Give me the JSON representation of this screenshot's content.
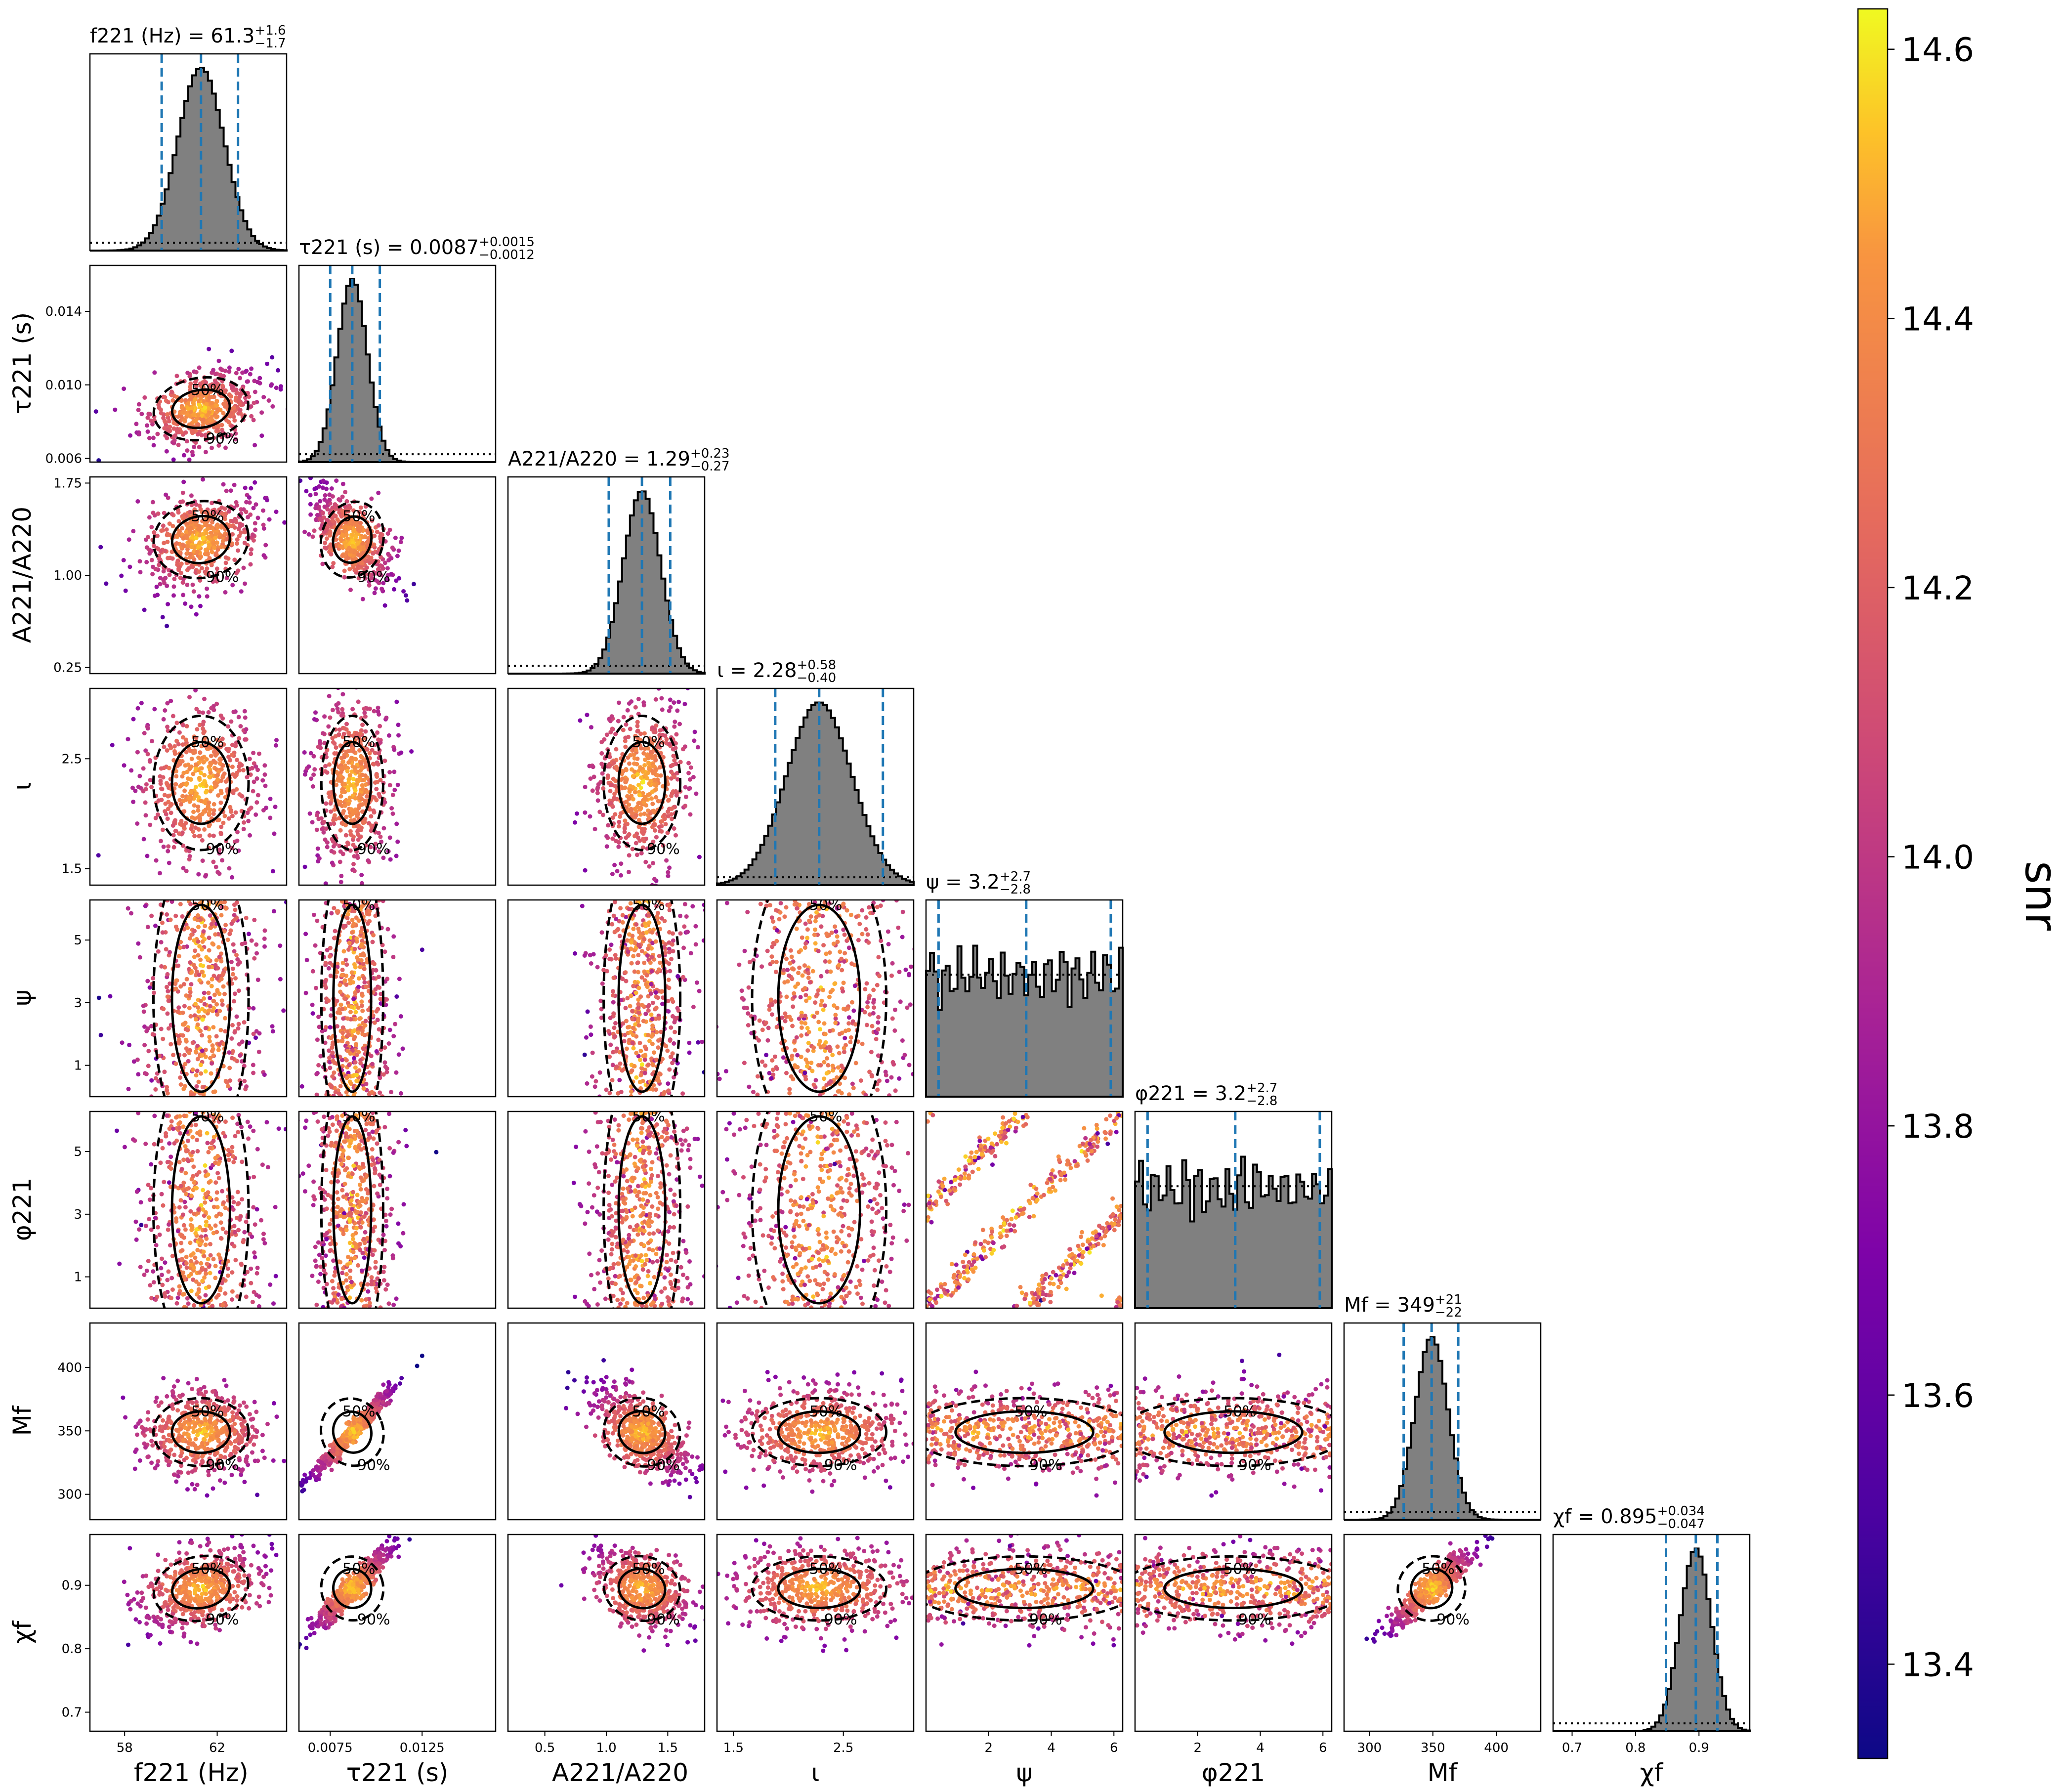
{
  "chart_data": {
    "type": "scatter",
    "title": "",
    "kind": "corner plot",
    "parameters": [
      {
        "key": "f221",
        "axis_label": "f221 (Hz)",
        "title_name": "f221 (Hz)",
        "median": "61.3",
        "plus": "+1.6",
        "minus": "−1.7",
        "range": [
          56.5,
          65.0
        ],
        "ticks": [
          58,
          62
        ],
        "tick_labels": [
          "58",
          "62"
        ]
      },
      {
        "key": "tau221",
        "axis_label": "τ221 (s)",
        "title_name": "τ221 (s)",
        "median": "0.0087",
        "plus": "+0.0015",
        "minus": "−0.0012",
        "range": [
          0.0058,
          0.0165
        ],
        "ticks": [
          0.0075,
          0.0125
        ],
        "tick_labels": [
          "0.0075",
          "0.0125"
        ],
        "y_ticks": [
          0.006,
          0.01,
          0.014
        ],
        "y_tick_labels": [
          "0.006",
          "0.010",
          "0.014"
        ]
      },
      {
        "key": "amp",
        "axis_label": "A221/A220",
        "title_name": "A221/A220",
        "median": "1.29",
        "plus": "+0.23",
        "minus": "−0.27",
        "range": [
          0.2,
          1.8
        ],
        "ticks": [
          0.5,
          1.0,
          1.5
        ],
        "tick_labels": [
          "0.5",
          "1.0",
          "1.5"
        ],
        "y_ticks": [
          0.25,
          1.0,
          1.75
        ],
        "y_tick_labels": [
          "0.25",
          "1.00",
          "1.75"
        ]
      },
      {
        "key": "iota",
        "axis_label": "ι",
        "title_name": "ι",
        "median": "2.28",
        "plus": "+0.58",
        "minus": "−0.40",
        "range": [
          1.35,
          3.14
        ],
        "ticks": [
          1.5,
          2.5
        ],
        "tick_labels": [
          "1.5",
          "2.5"
        ]
      },
      {
        "key": "psi",
        "axis_label": "ψ",
        "title_name": "ψ",
        "median": "3.2",
        "plus": "+2.7",
        "minus": "−2.8",
        "range": [
          0.0,
          6.28
        ],
        "ticks": [
          2,
          4,
          6
        ],
        "tick_labels": [
          "2",
          "4",
          "6"
        ],
        "y_ticks": [
          1,
          3,
          5
        ],
        "y_tick_labels": [
          "1",
          "3",
          "5"
        ]
      },
      {
        "key": "phi221",
        "axis_label": "φ221",
        "title_name": "φ221",
        "median": "3.2",
        "plus": "+2.7",
        "minus": "−2.8",
        "range": [
          0.0,
          6.28
        ],
        "ticks": [
          2,
          4,
          6
        ],
        "tick_labels": [
          "2",
          "4",
          "6"
        ],
        "y_ticks": [
          1,
          3,
          5
        ],
        "y_tick_labels": [
          "1",
          "3",
          "5"
        ]
      },
      {
        "key": "Mf",
        "axis_label": "Mf",
        "title_name": "Mf",
        "median": "349",
        "plus": "+21",
        "minus": "−22",
        "range": [
          280,
          435
        ],
        "ticks": [
          300,
          350,
          400
        ],
        "tick_labels": [
          "300",
          "350",
          "400"
        ]
      },
      {
        "key": "chif",
        "axis_label": "χf",
        "title_name": "χf",
        "median": "0.895",
        "plus": "+0.034",
        "minus": "−0.047",
        "range": [
          0.67,
          0.98
        ],
        "ticks": [
          0.7,
          0.8,
          0.9
        ],
        "tick_labels": [
          "0.7",
          "0.8",
          "0.9"
        ]
      }
    ],
    "contour_levels": [
      "50%",
      "90%"
    ],
    "colorbar": {
      "label": "snr",
      "range": [
        13.33,
        14.63
      ],
      "ticks": [
        13.4,
        13.6,
        13.8,
        14.0,
        14.2,
        14.4,
        14.6
      ],
      "tick_labels": [
        "13.4",
        "13.6",
        "13.8",
        "14.0",
        "14.2",
        "14.4",
        "14.6"
      ],
      "colormap": "plasma"
    },
    "colors": {
      "histogram_fill": "#808080",
      "quantile_lines": "#1f77b4",
      "prior_line": "#000000"
    }
  }
}
